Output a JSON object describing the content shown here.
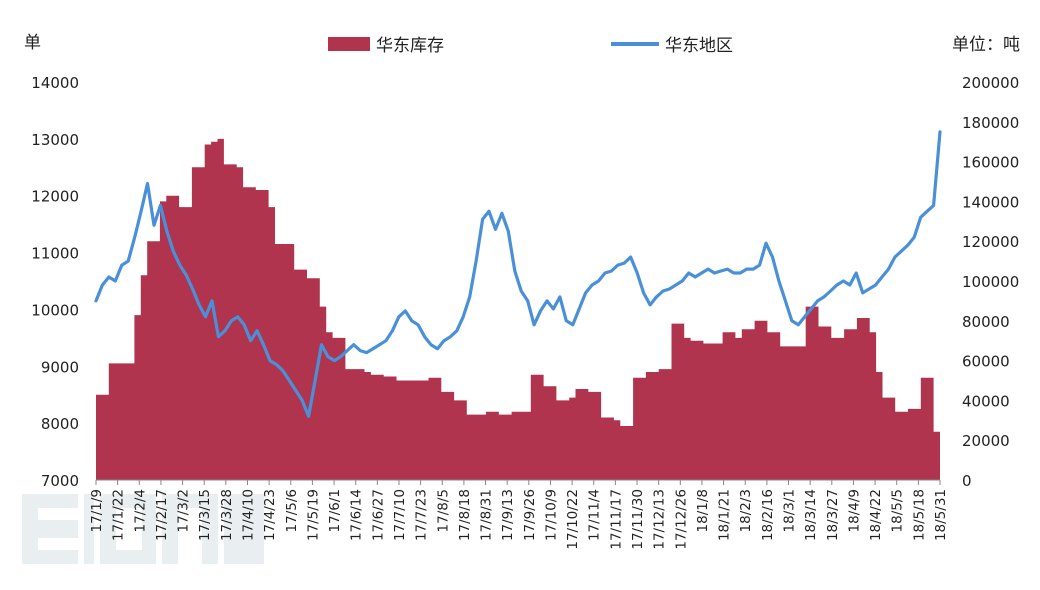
{
  "chart_data": {
    "type": "area",
    "left_unit": "单",
    "right_unit": "单位：吨",
    "y_left": {
      "min": 7000,
      "max": 14000,
      "ticks": [
        7000,
        8000,
        9000,
        10000,
        11000,
        12000,
        13000,
        14000
      ]
    },
    "y_right": {
      "min": 0,
      "max": 200000,
      "ticks": [
        0,
        20000,
        40000,
        60000,
        80000,
        100000,
        120000,
        140000,
        160000,
        180000,
        200000
      ]
    },
    "x_labels": [
      "17/1/9",
      "17/1/22",
      "17/2/4",
      "17/2/17",
      "17/3/2",
      "17/3/15",
      "17/3/28",
      "17/4/10",
      "17/4/23",
      "17/5/6",
      "17/5/19",
      "17/6/1",
      "17/6/14",
      "17/6/27",
      "17/7/10",
      "17/7/23",
      "17/8/5",
      "17/8/18",
      "17/8/31",
      "17/9/13",
      "17/9/26",
      "17/10/9",
      "17/10/22",
      "17/11/4",
      "17/11/17",
      "17/11/30",
      "17/12/13",
      "17/12/26",
      "18/1/8",
      "18/1/21",
      "18/2/3",
      "18/2/16",
      "18/3/1",
      "18/3/14",
      "18/3/27",
      "18/4/9",
      "18/4/22",
      "18/5/5",
      "18/5/18",
      "18/5/31"
    ],
    "series": [
      {
        "name": "华东库存",
        "kind": "area",
        "axis": "left",
        "color": "#b0344e",
        "values": [
          8500,
          8500,
          9050,
          9050,
          9050,
          9050,
          9900,
          10600,
          11200,
          11200,
          11900,
          12000,
          12000,
          11800,
          11800,
          12500,
          12500,
          12900,
          12950,
          13000,
          12550,
          12550,
          12500,
          12150,
          12150,
          12100,
          12100,
          11800,
          11150,
          11150,
          11150,
          10700,
          10700,
          10550,
          10550,
          10050,
          9600,
          9500,
          9500,
          8950,
          8950,
          8950,
          8900,
          8850,
          8850,
          8820,
          8820,
          8750,
          8750,
          8750,
          8750,
          8750,
          8800,
          8800,
          8550,
          8550,
          8400,
          8400,
          8150,
          8150,
          8150,
          8200,
          8200,
          8150,
          8150,
          8200,
          8200,
          8200,
          8850,
          8850,
          8650,
          8650,
          8400,
          8400,
          8450,
          8600,
          8600,
          8550,
          8550,
          8100,
          8100,
          8050,
          7950,
          7950,
          8800,
          8800,
          8900,
          8900,
          8950,
          8950,
          9750,
          9750,
          9500,
          9450,
          9450,
          9400,
          9400,
          9400,
          9600,
          9600,
          9500,
          9650,
          9650,
          9800,
          9800,
          9600,
          9600,
          9350,
          9350,
          9350,
          9350,
          10050,
          10050,
          9700,
          9700,
          9500,
          9500,
          9650,
          9650,
          9850,
          9850,
          9600,
          8900,
          8450,
          8450,
          8200,
          8200,
          8250,
          8250,
          8800,
          8800,
          7850
        ]
      },
      {
        "name": "华东地区",
        "kind": "line",
        "axis": "right",
        "color": "#4a90d9",
        "values": [
          90000,
          98000,
          102000,
          100000,
          108000,
          110000,
          122000,
          135000,
          149000,
          128000,
          138000,
          125000,
          115000,
          108000,
          103000,
          96000,
          88000,
          82000,
          90000,
          72000,
          75000,
          80000,
          82000,
          78000,
          70000,
          75000,
          68000,
          60000,
          58000,
          55000,
          50000,
          45000,
          40000,
          32000,
          50000,
          68000,
          62000,
          60000,
          62000,
          65000,
          68000,
          65000,
          64000,
          66000,
          68000,
          70000,
          75000,
          82000,
          85000,
          80000,
          78000,
          72000,
          68000,
          66000,
          70000,
          72000,
          75000,
          82000,
          92000,
          110000,
          131000,
          135000,
          126000,
          134000,
          125000,
          105000,
          95000,
          90000,
          78000,
          85000,
          90000,
          86000,
          92000,
          80000,
          78000,
          86000,
          94000,
          98000,
          100000,
          104000,
          105000,
          108000,
          109000,
          112000,
          104000,
          94000,
          88000,
          92000,
          95000,
          96000,
          98000,
          100000,
          104000,
          102000,
          104000,
          106000,
          104000,
          105000,
          106000,
          104000,
          104000,
          106000,
          106000,
          108000,
          119000,
          112000,
          100000,
          90000,
          80000,
          78000,
          82000,
          86000,
          90000,
          92000,
          95000,
          98000,
          100000,
          98000,
          104000,
          94000,
          96000,
          98000,
          102000,
          106000,
          112000,
          115000,
          118000,
          122000,
          132000,
          135000,
          138000,
          175000
        ]
      }
    ]
  }
}
